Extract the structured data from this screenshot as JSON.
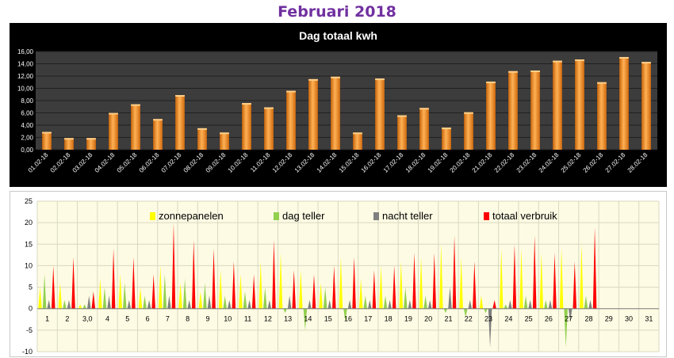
{
  "page": {
    "title": "Februari 2018"
  },
  "colors": {
    "bar": "#f28c1e",
    "top_background": "#000000",
    "plot_background": "#3c3c3c",
    "bottom_background": "#fdfbe3",
    "zonnepanelen": "#ffff00",
    "dag_teller": "#92d050",
    "nacht_teller": "#7f7f7f",
    "totaal_verbruik": "#ff0000"
  },
  "chart_data": [
    {
      "type": "bar",
      "title": "Dag totaal kwh",
      "xlabel": "",
      "ylabel": "",
      "ylim": [
        0,
        16
      ],
      "grid": true,
      "y_ticks": [
        "0,00",
        "2,00",
        "4,00",
        "6,00",
        "8,00",
        "10,00",
        "12,00",
        "14,00",
        "16,00"
      ],
      "categories": [
        "01.02-18",
        "02.02-18",
        "03.02-18",
        "04.02-18",
        "05.02-18",
        "06.02-18",
        "07.02-18",
        "08.02-18",
        "09.02-18",
        "10.02-18",
        "11.02-18",
        "12.02-18",
        "13.02-18",
        "14.02-18",
        "15.02-18",
        "16.02-18",
        "17.02-18",
        "18.02-18",
        "19.02-18",
        "20.02-18",
        "21.02-18",
        "22.02-18",
        "23.02-18",
        "24.02-18",
        "25.02-18",
        "26.02-18",
        "27.02-18",
        "28.02-18"
      ],
      "values": [
        2.9,
        1.9,
        1.9,
        6.0,
        7.4,
        5.0,
        8.9,
        3.5,
        2.8,
        7.6,
        6.9,
        9.6,
        11.5,
        11.9,
        2.8,
        11.6,
        5.6,
        6.8,
        3.6,
        6.1,
        11.1,
        12.8,
        12.9,
        14.5,
        14.7,
        11.0,
        15.1,
        14.3
      ]
    },
    {
      "type": "area",
      "title": "",
      "xlabel": "",
      "ylabel": "",
      "ylim": [
        -10,
        25
      ],
      "grid": true,
      "y_ticks": [
        "-10",
        "-5",
        "0",
        "5",
        "10",
        "15",
        "20",
        "25"
      ],
      "categories": [
        "1",
        "2",
        "3,0",
        "4",
        "5",
        "6",
        "7",
        "8",
        "9",
        "10",
        "11",
        "12",
        "13",
        "14",
        "15",
        "16",
        "17",
        "18",
        "19",
        "20",
        "21",
        "22",
        "23",
        "24",
        "25",
        "26",
        "27",
        "28",
        "29",
        "30",
        "31"
      ],
      "legend_position": "top",
      "series": [
        {
          "name": "zonnepanelen",
          "color": "#ffff00",
          "values": [
            5,
            6,
            1,
            7,
            8,
            5,
            10,
            6,
            4,
            9,
            8,
            11,
            13,
            9,
            6,
            12,
            7,
            10,
            11,
            12,
            15,
            12,
            3,
            14,
            14,
            13,
            14,
            15,
            0,
            0,
            0
          ]
        },
        {
          "name": "dag teller",
          "color": "#92d050",
          "values": [
            8,
            2,
            1,
            5,
            6,
            3,
            8,
            7,
            6,
            3,
            4,
            5,
            -1,
            -5,
            5,
            -3,
            3,
            3,
            5,
            3,
            -1,
            -2,
            -1,
            1,
            3,
            2,
            -9,
            3,
            0,
            0,
            0
          ]
        },
        {
          "name": "nacht teller",
          "color": "#7f7f7f",
          "values": [
            2,
            2,
            3,
            3,
            2,
            2,
            3,
            2,
            3,
            2,
            2,
            2,
            3,
            2,
            2,
            2,
            2,
            2,
            2,
            2,
            5,
            2,
            -9,
            2,
            2,
            2,
            -3,
            2,
            0,
            0,
            0
          ]
        },
        {
          "name": "totaal verbruik",
          "color": "#ff0000",
          "values": [
            10,
            12,
            4,
            14,
            12,
            8,
            20,
            16,
            14,
            11,
            8,
            16,
            9,
            8,
            10,
            12,
            9,
            10,
            13,
            13,
            17,
            11,
            2,
            15,
            17,
            13,
            11,
            19,
            0,
            0,
            0
          ]
        }
      ]
    }
  ]
}
